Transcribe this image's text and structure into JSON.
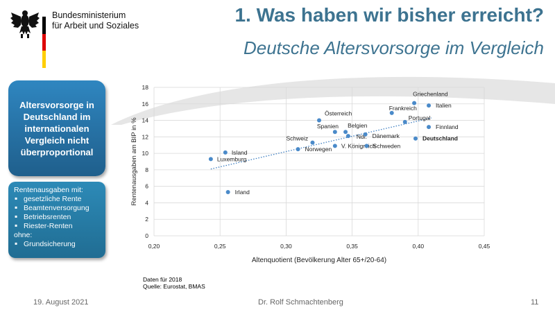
{
  "header": {
    "ministry_line1": "Bundesministerium",
    "ministry_line2": "für Arbeit und Soziales",
    "title": "1. Was haben wir bisher erreicht?",
    "subtitle": "Deutsche Altersvorsorge im Vergleich",
    "flag_colors": [
      "#000000",
      "#dd0000",
      "#ffce00"
    ],
    "title_color": "#3d7390"
  },
  "sidebar": {
    "statement": "Altersvorsorge in\nDeutschland im\ninternationalen\nVergleich nicht\nüberproportional",
    "spending_heading": "Rentenausgaben mit:",
    "spending_items": [
      "gesetzliche Rente",
      "Beamtenversorgung",
      "Betriebsrenten",
      "Riester-Renten"
    ],
    "without_label": "ohne:",
    "without_items": [
      "Grundsicherung"
    ]
  },
  "chart_data": {
    "type": "scatter",
    "xlabel": "Altenquotient (Bevölkerung Alter 65+/20-64)",
    "ylabel": "Rentenausgaben am BIP in %",
    "xlim": [
      0.2,
      0.45
    ],
    "ylim": [
      0,
      18
    ],
    "x_ticks": [
      "0,20",
      "0,25",
      "0,30",
      "0,35",
      "0,40",
      "0,45"
    ],
    "y_ticks": [
      "0",
      "2",
      "4",
      "6",
      "8",
      "10",
      "12",
      "14",
      "16",
      "18"
    ],
    "grid": true,
    "trendline": {
      "style": "dotted",
      "x": [
        0.243,
        0.41
      ],
      "y": [
        8.1,
        14.3
      ]
    },
    "points": [
      {
        "label": "Griechenland",
        "x": 0.397,
        "y": 16.1
      },
      {
        "label": "Italien",
        "x": 0.408,
        "y": 15.8
      },
      {
        "label": "Frankreich",
        "x": 0.38,
        "y": 14.9
      },
      {
        "label": "Portugal",
        "x": 0.39,
        "y": 13.8
      },
      {
        "label": "Finnland",
        "x": 0.408,
        "y": 13.2
      },
      {
        "label": "Österreich",
        "x": 0.325,
        "y": 14.0
      },
      {
        "label": "Spanien",
        "x": 0.337,
        "y": 12.6
      },
      {
        "label": "Belgien",
        "x": 0.345,
        "y": 12.6
      },
      {
        "label": "Ndl.",
        "x": 0.347,
        "y": 12.1
      },
      {
        "label": "Dänemark",
        "x": 0.36,
        "y": 12.3
      },
      {
        "label": "Deutschland",
        "x": 0.398,
        "y": 11.8
      },
      {
        "label": "Schweiz",
        "x": 0.32,
        "y": 11.3
      },
      {
        "label": "V. Königreich",
        "x": 0.337,
        "y": 10.9
      },
      {
        "label": "Schweden",
        "x": 0.361,
        "y": 10.9
      },
      {
        "label": "Norwegen",
        "x": 0.309,
        "y": 10.5
      },
      {
        "label": "Island",
        "x": 0.254,
        "y": 10.1
      },
      {
        "label": "Luxemburg",
        "x": 0.243,
        "y": 9.3
      },
      {
        "label": "Irland",
        "x": 0.256,
        "y": 5.3
      }
    ],
    "point_color": "#4a8ac9",
    "highlight": "Deutschland"
  },
  "source": {
    "line1": "Daten für 2018",
    "line2": "Quelle: Eurostat, BMAS"
  },
  "footer": {
    "date": "19. August 2021",
    "author": "Dr. Rolf Schmachtenberg",
    "page": "11"
  }
}
